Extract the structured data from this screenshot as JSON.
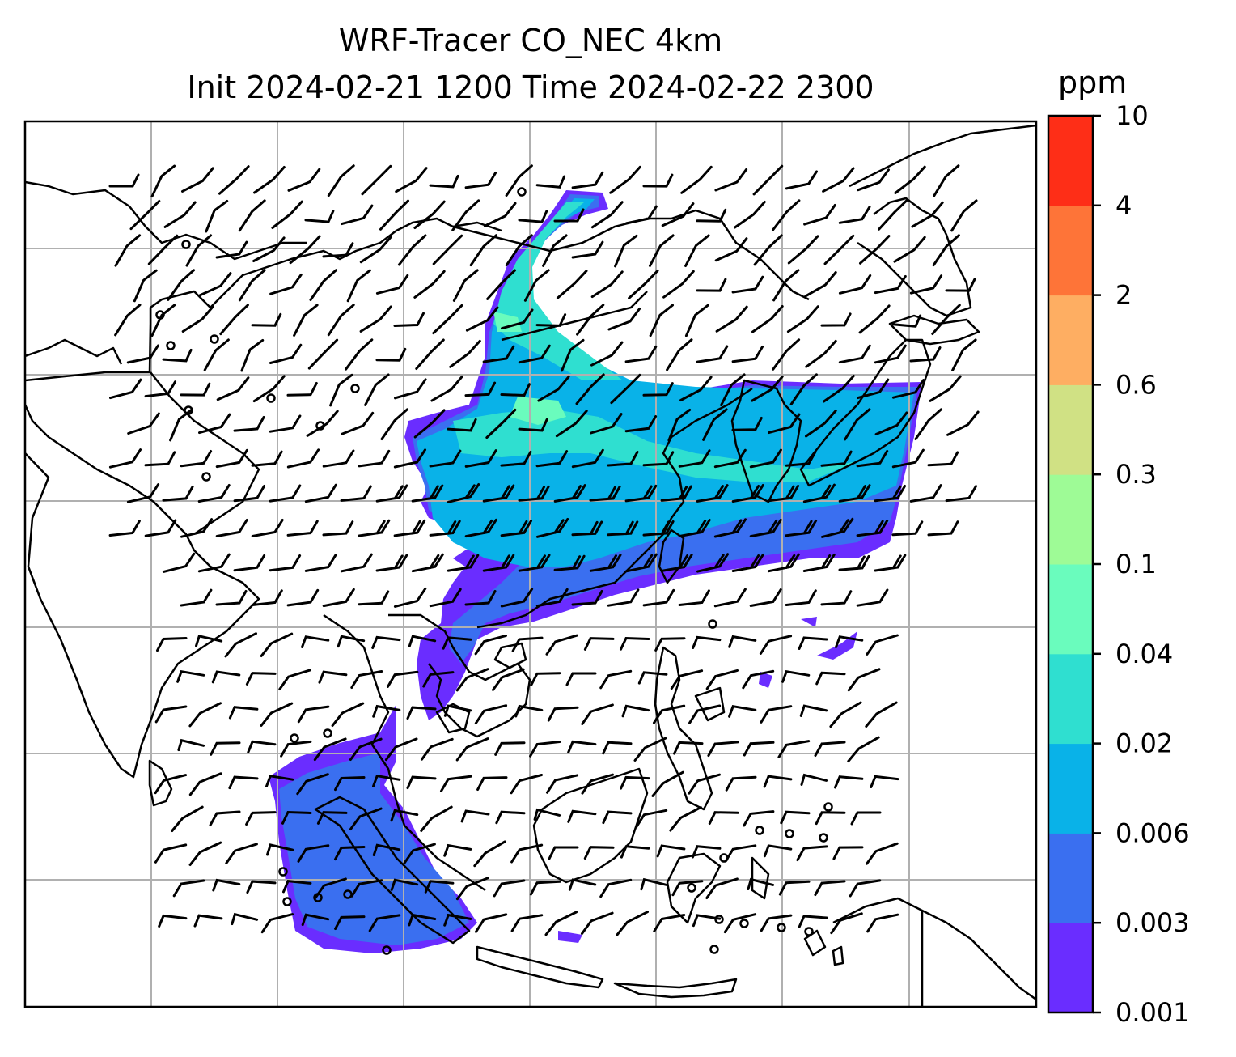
{
  "title": {
    "line1": "WRF-Tracer CO_NEC 4km",
    "line2": "Init 2024-02-21 1200 Time 2024-02-22 2300"
  },
  "colorbar": {
    "unit": "ppm",
    "levels": [
      "0.001",
      "0.003",
      "0.006",
      "0.02",
      "0.04",
      "0.1",
      "0.3",
      "0.6",
      "2",
      "4",
      "10"
    ],
    "colors": [
      "#6a2dff",
      "#3a6ff0",
      "#09b2e8",
      "#2fdfd0",
      "#6afcbd",
      "#9efb96",
      "#d0e184",
      "#feae62",
      "#fe7438",
      "#fe2e17"
    ]
  },
  "map": {
    "land_outline_color": "#000000",
    "gridline_color": "#b0b0b0",
    "overlays": [
      "wind-barbs",
      "calm-circles",
      "coastlines",
      "lat-lon-gridlines"
    ]
  }
}
